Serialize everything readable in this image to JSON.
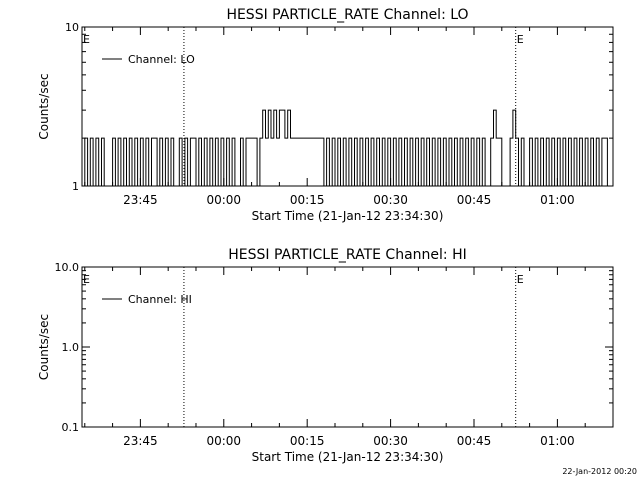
{
  "chart_data": [
    {
      "type": "line",
      "title": "HESSI PARTICLE_RATE Channel: LO",
      "xlabel": "Start Time (21-Jan-12 23:34:30)",
      "ylabel": "Counts/sec",
      "y_scale": "log",
      "ylim": [
        1,
        10
      ],
      "ytick_labels": [
        "1",
        "10"
      ],
      "xlim": [
        "23:34:30",
        "01:10:00"
      ],
      "xtick_labels": [
        "23:45",
        "00:00",
        "00:15",
        "00:30",
        "00:45",
        "01:00"
      ],
      "legend": {
        "label": "Channel: LO",
        "position": "top-left"
      },
      "markers": [
        {
          "time": "23:34:30",
          "label": "E",
          "line": false
        },
        {
          "time": "23:52:50",
          "label": "",
          "line": true
        },
        {
          "time": "00:52:30",
          "label": "E",
          "line": true
        },
        {
          "time": "01:10:00",
          "label": "",
          "line": true
        }
      ],
      "series": [
        {
          "name": "Channel: LO",
          "color": "#000000",
          "values": [
            [
              "23:34:30",
              1
            ],
            [
              "23:35:00",
              2
            ],
            [
              "23:35:30",
              1
            ],
            [
              "23:36:00",
              2
            ],
            [
              "23:36:30",
              1
            ],
            [
              "23:37:00",
              2
            ],
            [
              "23:37:30",
              1
            ],
            [
              "23:38:00",
              2
            ],
            [
              "23:38:30",
              1
            ],
            [
              "23:40:00",
              2
            ],
            [
              "23:40:30",
              1
            ],
            [
              "23:41:00",
              2
            ],
            [
              "23:41:30",
              1
            ],
            [
              "23:42:00",
              2
            ],
            [
              "23:42:30",
              1
            ],
            [
              "23:43:00",
              2
            ],
            [
              "23:43:30",
              1
            ],
            [
              "23:44:00",
              2
            ],
            [
              "23:44:30",
              1
            ],
            [
              "23:45:00",
              2
            ],
            [
              "23:45:30",
              1
            ],
            [
              "23:46:00",
              2
            ],
            [
              "23:46:30",
              1
            ],
            [
              "23:47:00",
              2
            ],
            [
              "23:48:00",
              1
            ],
            [
              "23:48:30",
              2
            ],
            [
              "23:49:00",
              1
            ],
            [
              "23:49:30",
              2
            ],
            [
              "23:50:00",
              1
            ],
            [
              "23:50:30",
              2
            ],
            [
              "23:51:00",
              1
            ],
            [
              "23:52:00",
              2
            ],
            [
              "23:52:30",
              1
            ],
            [
              "23:53:00",
              2
            ],
            [
              "23:53:30",
              1
            ],
            [
              "23:54:00",
              2
            ],
            [
              "23:55:00",
              1
            ],
            [
              "23:55:30",
              2
            ],
            [
              "23:56:00",
              1
            ],
            [
              "23:56:30",
              2
            ],
            [
              "23:57:00",
              1
            ],
            [
              "23:57:30",
              2
            ],
            [
              "23:58:00",
              1
            ],
            [
              "23:58:30",
              2
            ],
            [
              "23:59:00",
              1
            ],
            [
              "23:59:30",
              2
            ],
            [
              "00:00:00",
              1
            ],
            [
              "00:00:30",
              2
            ],
            [
              "00:01:00",
              1
            ],
            [
              "00:01:30",
              2
            ],
            [
              "00:02:00",
              1
            ],
            [
              "00:03:00",
              2
            ],
            [
              "00:03:30",
              1
            ],
            [
              "00:04:00",
              2
            ],
            [
              "00:06:00",
              1
            ],
            [
              "00:06:30",
              2
            ],
            [
              "00:07:00",
              3
            ],
            [
              "00:07:30",
              2
            ],
            [
              "00:08:00",
              3
            ],
            [
              "00:08:30",
              2
            ],
            [
              "00:09:00",
              3
            ],
            [
              "00:09:30",
              2
            ],
            [
              "00:10:00",
              3
            ],
            [
              "00:11:00",
              2
            ],
            [
              "00:11:30",
              3
            ],
            [
              "00:12:00",
              2
            ],
            [
              "00:13:00",
              2
            ],
            [
              "00:15:00",
              2
            ],
            [
              "00:17:00",
              2
            ],
            [
              "00:18:00",
              1
            ],
            [
              "00:18:30",
              2
            ],
            [
              "00:19:00",
              1
            ],
            [
              "00:19:30",
              2
            ],
            [
              "00:20:00",
              1
            ],
            [
              "00:20:30",
              2
            ],
            [
              "00:21:00",
              1
            ],
            [
              "00:21:30",
              2
            ],
            [
              "00:22:00",
              1
            ],
            [
              "00:22:30",
              2
            ],
            [
              "00:23:00",
              1
            ],
            [
              "00:23:30",
              2
            ],
            [
              "00:24:00",
              1
            ],
            [
              "00:24:30",
              2
            ],
            [
              "00:25:00",
              1
            ],
            [
              "00:25:30",
              2
            ],
            [
              "00:26:00",
              1
            ],
            [
              "00:26:30",
              2
            ],
            [
              "00:27:00",
              1
            ],
            [
              "00:27:30",
              2
            ],
            [
              "00:28:00",
              1
            ],
            [
              "00:28:30",
              2
            ],
            [
              "00:29:00",
              1
            ],
            [
              "00:29:30",
              2
            ],
            [
              "00:30:00",
              1
            ],
            [
              "00:30:30",
              2
            ],
            [
              "00:31:00",
              1
            ],
            [
              "00:31:30",
              2
            ],
            [
              "00:32:00",
              1
            ],
            [
              "00:32:30",
              2
            ],
            [
              "00:33:00",
              1
            ],
            [
              "00:33:30",
              2
            ],
            [
              "00:34:00",
              1
            ],
            [
              "00:34:30",
              2
            ],
            [
              "00:35:00",
              1
            ],
            [
              "00:35:30",
              2
            ],
            [
              "00:36:00",
              1
            ],
            [
              "00:36:30",
              2
            ],
            [
              "00:37:00",
              1
            ],
            [
              "00:37:30",
              2
            ],
            [
              "00:38:00",
              1
            ],
            [
              "00:38:30",
              2
            ],
            [
              "00:39:00",
              1
            ],
            [
              "00:39:30",
              2
            ],
            [
              "00:40:00",
              1
            ],
            [
              "00:40:30",
              2
            ],
            [
              "00:41:00",
              1
            ],
            [
              "00:41:30",
              2
            ],
            [
              "00:42:00",
              1
            ],
            [
              "00:42:30",
              2
            ],
            [
              "00:43:00",
              1
            ],
            [
              "00:43:30",
              2
            ],
            [
              "00:44:00",
              1
            ],
            [
              "00:44:30",
              2
            ],
            [
              "00:45:00",
              1
            ],
            [
              "00:45:30",
              2
            ],
            [
              "00:46:00",
              1
            ],
            [
              "00:46:30",
              2
            ],
            [
              "00:47:00",
              1
            ],
            [
              "00:48:00",
              2
            ],
            [
              "00:48:30",
              3
            ],
            [
              "00:49:00",
              2
            ],
            [
              "00:50:00",
              1
            ],
            [
              "00:51:00",
              1
            ],
            [
              "00:51:30",
              2
            ],
            [
              "00:52:00",
              3
            ],
            [
              "00:52:30",
              2
            ],
            [
              "00:53:00",
              1
            ],
            [
              "00:53:30",
              2
            ],
            [
              "00:54:00",
              1
            ],
            [
              "00:55:00",
              2
            ],
            [
              "00:55:30",
              1
            ],
            [
              "00:56:00",
              2
            ],
            [
              "00:56:30",
              1
            ],
            [
              "00:57:00",
              2
            ],
            [
              "00:57:30",
              1
            ],
            [
              "00:58:00",
              2
            ],
            [
              "00:58:30",
              1
            ],
            [
              "00:59:00",
              2
            ],
            [
              "00:59:30",
              1
            ],
            [
              "01:00:00",
              2
            ],
            [
              "01:00:30",
              1
            ],
            [
              "01:01:00",
              2
            ],
            [
              "01:01:30",
              1
            ],
            [
              "01:02:00",
              2
            ],
            [
              "01:02:30",
              1
            ],
            [
              "01:03:00",
              2
            ],
            [
              "01:03:30",
              1
            ],
            [
              "01:04:00",
              2
            ],
            [
              "01:04:30",
              1
            ],
            [
              "01:05:00",
              2
            ],
            [
              "01:05:30",
              1
            ],
            [
              "01:06:00",
              2
            ],
            [
              "01:06:30",
              1
            ],
            [
              "01:07:00",
              2
            ],
            [
              "01:07:30",
              1
            ],
            [
              "01:08:00",
              2
            ],
            [
              "01:09:00",
              1
            ]
          ]
        }
      ]
    },
    {
      "type": "line",
      "title": "HESSI PARTICLE_RATE Channel: HI",
      "xlabel": "Start Time (21-Jan-12 23:34:30)",
      "ylabel": "Counts/sec",
      "y_scale": "log",
      "ylim": [
        0.1,
        10
      ],
      "ytick_labels": [
        "0.1",
        "1.0",
        "10.0"
      ],
      "xlim": [
        "23:34:30",
        "01:10:00"
      ],
      "xtick_labels": [
        "23:45",
        "00:00",
        "00:15",
        "00:30",
        "00:45",
        "01:00"
      ],
      "legend": {
        "label": "Channel: HI",
        "position": "top-left"
      },
      "markers": [
        {
          "time": "23:34:30",
          "label": "E",
          "line": false
        },
        {
          "time": "23:52:50",
          "label": "",
          "line": true
        },
        {
          "time": "00:52:30",
          "label": "E",
          "line": true
        },
        {
          "time": "01:10:00",
          "label": "",
          "line": true
        }
      ],
      "series": [
        {
          "name": "Channel: HI",
          "color": "#000000",
          "values": []
        }
      ]
    }
  ],
  "footer_timestamp": "22-Jan-2012 00:20"
}
